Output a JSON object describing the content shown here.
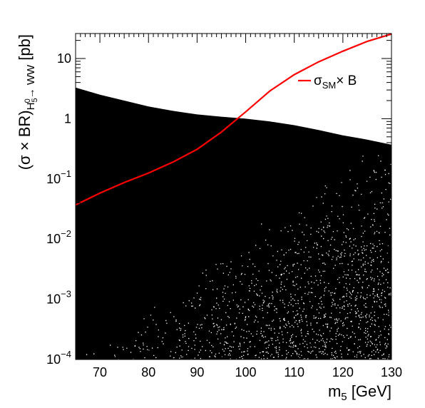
{
  "chart_data": {
    "type": "scatter",
    "title": "",
    "xlabel": "m5 [GeV]",
    "xlabel_parts": {
      "base": "m",
      "sub": "5",
      "unit": " [GeV]"
    },
    "ylabel": "(σ × BR)H50→WW [pb]",
    "ylabel_parts": {
      "prefix": "(σ × BR)",
      "sub_h": "H",
      "sub_h_sub": "5",
      "sub_h_sup": "0",
      "arrow": "→ WW",
      "unit": " [pb]"
    },
    "xlim": [
      65,
      130
    ],
    "ylim": [
      0.0001,
      26
    ],
    "yscale": "log",
    "x_ticks": [
      "70",
      "80",
      "90",
      "100",
      "110",
      "120",
      "130"
    ],
    "y_ticks": [
      {
        "base": "10",
        "exp": "−4"
      },
      {
        "base": "10",
        "exp": "−3"
      },
      {
        "base": "10",
        "exp": "−2"
      },
      {
        "base": "10",
        "exp": "−1"
      },
      {
        "base": "1",
        "exp": ""
      },
      {
        "base": "10",
        "exp": ""
      }
    ],
    "y_tick_values": [
      0.0001,
      0.001,
      0.01,
      0.1,
      1,
      10
    ],
    "scan_points_upper_envelope": {
      "x": [
        65,
        70,
        75,
        80,
        85,
        90,
        95,
        100,
        105,
        110,
        115,
        120,
        125,
        130
      ],
      "y": [
        3.3,
        2.5,
        2.0,
        1.6,
        1.35,
        1.18,
        1.08,
        1.0,
        0.9,
        0.78,
        0.65,
        0.53,
        0.45,
        0.37
      ]
    },
    "series": [
      {
        "name": "σSM× B",
        "legend_parts": {
          "base": "σ",
          "sub": "SM",
          "rest": "× B"
        },
        "color": "#ff0000",
        "x": [
          65,
          70,
          75,
          80,
          85,
          90,
          95,
          100,
          105,
          110,
          115,
          120,
          125,
          130
        ],
        "y": [
          0.037,
          0.058,
          0.087,
          0.125,
          0.19,
          0.31,
          0.6,
          1.3,
          2.9,
          5.4,
          8.8,
          13.2,
          19.2,
          25.5
        ]
      }
    ],
    "scatter_color": "#000000",
    "legend_position": "top-right",
    "grid": false
  }
}
